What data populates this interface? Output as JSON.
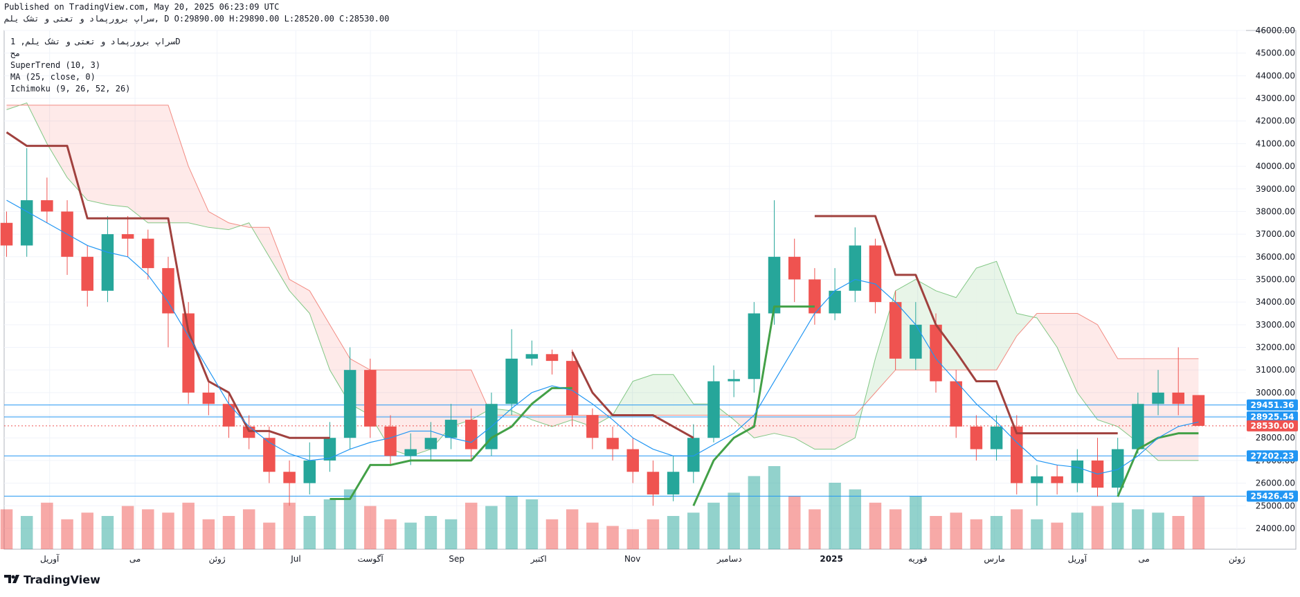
{
  "header": {
    "published": "Published on TradingView.com, May 20, 2025 06:23:09 UTC",
    "symbol_line": "سراپ برورپماد و تعتی و تشک یلم, D O:29890.00 H:29890.00 L:28520.00 C:28530.00"
  },
  "legend": {
    "symbol": "سراپ برورپماد و تعتی و تشک یلم, 1D",
    "exchange": "مح"
  },
  "footer": {
    "brand": "TradingView"
  },
  "chart_data": {
    "type": "candlestick",
    "up_color": "#26a69a",
    "down_color": "#ef5350",
    "open": [
      37500,
      36500,
      38500,
      38000,
      36000,
      34500,
      37000,
      36800,
      35500,
      33500,
      30000,
      29500,
      28500,
      28000,
      26500,
      26000,
      27000,
      28000,
      31000,
      28500,
      27200,
      27500,
      28000,
      28800,
      27500,
      29500,
      31500,
      31700,
      31400,
      29000,
      28000,
      27500,
      26500,
      25500,
      26500,
      28000,
      30500,
      30600,
      33500,
      36000,
      35000,
      33500,
      34500,
      36500,
      34000,
      31500,
      33000,
      30500,
      28500,
      27500,
      28500,
      26000,
      26300,
      26000,
      27000,
      25800,
      27500,
      29500,
      30000,
      29890
    ],
    "high": [
      38000,
      40800,
      39500,
      38500,
      36500,
      37800,
      37800,
      37200,
      36000,
      34000,
      30500,
      30000,
      29000,
      28500,
      27000,
      27800,
      28700,
      32000,
      31500,
      29000,
      28200,
      28700,
      29500,
      29300,
      30000,
      32800,
      32300,
      31900,
      31900,
      29300,
      28500,
      28000,
      27000,
      27200,
      28600,
      31200,
      31000,
      34000,
      38500,
      36800,
      35500,
      35500,
      37300,
      36800,
      34500,
      34000,
      33500,
      31000,
      29000,
      29000,
      29000,
      26800,
      26800,
      27500,
      28000,
      28000,
      30000,
      31000,
      32000,
      29890
    ],
    "low": [
      36000,
      36000,
      37500,
      35200,
      33800,
      34000,
      36000,
      35000,
      32000,
      29500,
      29000,
      28000,
      27500,
      26000,
      25000,
      25500,
      26500,
      27500,
      28000,
      26800,
      26800,
      27000,
      27500,
      27000,
      27200,
      29000,
      31200,
      30800,
      28500,
      27500,
      27000,
      26000,
      25000,
      25200,
      26000,
      27800,
      29800,
      30000,
      33000,
      34000,
      33000,
      33200,
      34000,
      33500,
      31000,
      31000,
      30000,
      28000,
      27000,
      27000,
      25500,
      25000,
      25500,
      25600,
      25400,
      25500,
      27300,
      29000,
      29000,
      28520
    ],
    "close": [
      36500,
      38500,
      38000,
      36000,
      34500,
      37000,
      36800,
      35500,
      33500,
      30000,
      29500,
      28500,
      28000,
      26500,
      26000,
      27000,
      28000,
      31000,
      28500,
      27200,
      27500,
      28000,
      28800,
      27500,
      29500,
      31500,
      31700,
      31400,
      29000,
      28000,
      27500,
      26500,
      25500,
      26500,
      28000,
      30500,
      30600,
      33500,
      36000,
      35000,
      33500,
      34500,
      36500,
      34000,
      31500,
      33000,
      30500,
      28500,
      27500,
      28500,
      26000,
      26300,
      26000,
      27000,
      25800,
      27500,
      29500,
      30000,
      29500,
      28530
    ],
    "volume": [
      12,
      10,
      14,
      9,
      11,
      10,
      13,
      12,
      11,
      14,
      9,
      10,
      12,
      8,
      14,
      10,
      15,
      18,
      13,
      9,
      8,
      10,
      9,
      14,
      13,
      16,
      15,
      9,
      12,
      8,
      7,
      6,
      9,
      10,
      11,
      14,
      17,
      22,
      25,
      16,
      12,
      20,
      18,
      14,
      12,
      16,
      10,
      11,
      9,
      10,
      12,
      9,
      8,
      11,
      13,
      14,
      12,
      11,
      10,
      16
    ],
    "series": [
      {
        "name": "SuperTrend (10, 3)",
        "up_color": "#43a047",
        "down_color": "#a0413e",
        "up_values": [
          null,
          null,
          null,
          null,
          null,
          null,
          null,
          null,
          null,
          null,
          null,
          null,
          null,
          null,
          null,
          null,
          25300,
          25300,
          26800,
          26800,
          27000,
          27000,
          27000,
          27000,
          28000,
          28500,
          29500,
          30200,
          30200,
          null,
          null,
          null,
          null,
          null,
          25000,
          27000,
          28000,
          28500,
          33800,
          33800,
          33800,
          null,
          null,
          null,
          null,
          null,
          null,
          null,
          null,
          null,
          null,
          null,
          null,
          null,
          null,
          25400,
          27500,
          28000,
          28200,
          28200
        ],
        "down_values": [
          41500,
          40900,
          40900,
          40900,
          37700,
          37700,
          37700,
          37700,
          37700,
          32700,
          30500,
          30000,
          28300,
          28300,
          28000,
          28000,
          28000,
          null,
          null,
          null,
          null,
          null,
          null,
          null,
          null,
          null,
          null,
          null,
          31800,
          30000,
          29000,
          29000,
          29000,
          28500,
          28000,
          null,
          null,
          null,
          null,
          null,
          37800,
          37800,
          37800,
          37800,
          35200,
          35200,
          33000,
          31800,
          30500,
          30500,
          28200,
          28200,
          28200,
          28200,
          28200,
          28200,
          null,
          null,
          null,
          null
        ]
      },
      {
        "name": "MA (25, close, 0)",
        "color": "#2196f3",
        "values": [
          38500,
          38000,
          37500,
          37000,
          36500,
          36200,
          36000,
          35200,
          34000,
          32500,
          31000,
          29500,
          28500,
          27800,
          27300,
          27000,
          27100,
          27500,
          27800,
          28000,
          28300,
          28300,
          28000,
          27800,
          28500,
          29300,
          30000,
          30300,
          30100,
          29500,
          28800,
          28000,
          27500,
          27200,
          27200,
          27700,
          28200,
          29000,
          30500,
          32000,
          33500,
          34500,
          35000,
          34800,
          34000,
          33000,
          31500,
          30500,
          29500,
          28700,
          27800,
          27000,
          26800,
          26700,
          26400,
          26600,
          27200,
          28000,
          28500,
          28700
        ]
      },
      {
        "name": "Ichimoku (9, 26, 52, 26)",
        "span_a_color": "#81c784",
        "span_b_color": "#f28b82",
        "span_a": [
          42500,
          42800,
          41000,
          39500,
          38500,
          38300,
          38200,
          37500,
          37500,
          37500,
          37300,
          37200,
          37500,
          36000,
          34500,
          33500,
          31000,
          29500,
          29000,
          27500,
          27200,
          27500,
          28500,
          28800,
          29300,
          29200,
          28800,
          28500,
          28800,
          28500,
          29000,
          30500,
          30800,
          30800,
          29500,
          29500,
          28800,
          28000,
          28200,
          28000,
          27500,
          27500,
          28000,
          31500,
          34500,
          35000,
          34500,
          34200,
          35500,
          35800,
          33500,
          33300,
          32000,
          30000,
          28800,
          28500,
          27800,
          27000,
          27000,
          27000
        ],
        "span_b": [
          42700,
          42700,
          42700,
          42700,
          42700,
          42700,
          42700,
          42700,
          42700,
          40000,
          38000,
          37500,
          37300,
          37300,
          35000,
          34500,
          33000,
          31500,
          31000,
          31000,
          31000,
          31000,
          31000,
          31000,
          29000,
          29000,
          29000,
          29000,
          29000,
          29000,
          29000,
          29000,
          29000,
          29000,
          29000,
          29000,
          29000,
          29000,
          29000,
          29000,
          29000,
          29000,
          29000,
          30000,
          31000,
          31000,
          31000,
          31000,
          31000,
          31000,
          32500,
          33500,
          33500,
          33500,
          33000,
          31500,
          31500,
          31500,
          31500,
          31500
        ]
      }
    ],
    "levels": [
      {
        "value": 29451.36,
        "label": "29451.36",
        "color": "#2196f3"
      },
      {
        "value": 28925.54,
        "label": "28925.54",
        "color": "#2196f3"
      },
      {
        "value": 28530,
        "label": "28530.00",
        "color": "#ef5350"
      },
      {
        "value": 27202.23,
        "label": "27202.23",
        "color": "#2196f3"
      },
      {
        "value": 25426.45,
        "label": "25426.45",
        "color": "#2196f3"
      }
    ],
    "ylim": [
      23080,
      46000
    ],
    "yticks": [
      {
        "value": 46000,
        "label": "46000.00"
      },
      {
        "value": 45000,
        "label": "45000.00"
      },
      {
        "value": 44000,
        "label": "44000.00"
      },
      {
        "value": 43000,
        "label": "43000.00"
      },
      {
        "value": 42000,
        "label": "42000.00"
      },
      {
        "value": 41000,
        "label": "41000.00"
      },
      {
        "value": 40000,
        "label": "40000.00"
      },
      {
        "value": 39000,
        "label": "39000.00"
      },
      {
        "value": 38000,
        "label": "38000.00"
      },
      {
        "value": 37000,
        "label": "37000.00"
      },
      {
        "value": 36000,
        "label": "36000.00"
      },
      {
        "value": 35000,
        "label": "35000.00"
      },
      {
        "value": 34000,
        "label": "34000.00"
      },
      {
        "value": 33000,
        "label": "33000.00"
      },
      {
        "value": 32000,
        "label": "32000.00"
      },
      {
        "value": 31000,
        "label": "31000.00"
      },
      {
        "value": 30000,
        "label": "30000.00"
      },
      {
        "value": 29000,
        "label": "29000.00"
      },
      {
        "value": 28000,
        "label": "28000.00"
      },
      {
        "value": 27000,
        "label": "27000.00"
      },
      {
        "value": 26000,
        "label": "26000.00"
      },
      {
        "value": 25000,
        "label": "25000.00"
      },
      {
        "value": 24000,
        "label": "24000.00"
      }
    ],
    "xlim": [
      -0.12,
      61.35
    ],
    "xticks": [
      {
        "value": 2.13,
        "label": "آوریل"
      },
      {
        "value": 6.36,
        "label": "می"
      },
      {
        "value": 10.42,
        "label": "ژوئن"
      },
      {
        "value": 14.32,
        "label": "Jul"
      },
      {
        "value": 18.01,
        "label": "آگوست"
      },
      {
        "value": 22.28,
        "label": "Sep"
      },
      {
        "value": 26.34,
        "label": "اکتبر"
      },
      {
        "value": 30.98,
        "label": "Nov"
      },
      {
        "value": 35.78,
        "label": "دسامبر"
      },
      {
        "value": 40.83,
        "label": "2025"
      },
      {
        "value": 45.1,
        "label": "فوریه"
      },
      {
        "value": 48.9,
        "label": "مارس"
      },
      {
        "value": 53.0,
        "label": "آوریل"
      },
      {
        "value": 56.3,
        "label": "می"
      },
      {
        "value": 60.9,
        "label": "ژوئن"
      }
    ],
    "grid": true
  }
}
